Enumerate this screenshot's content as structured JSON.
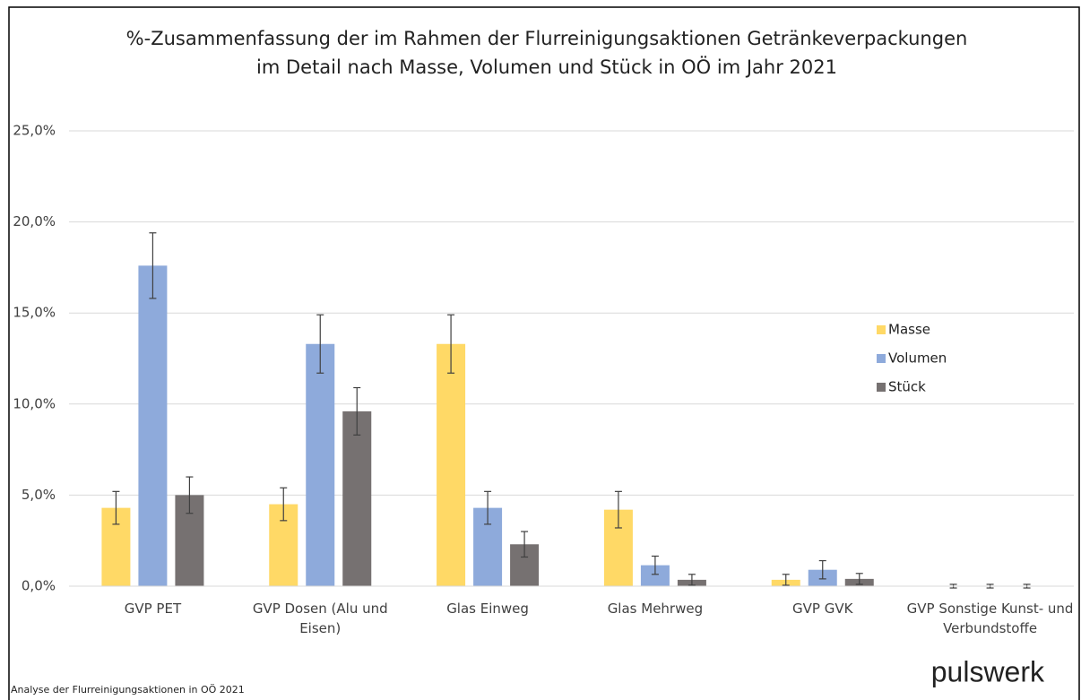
{
  "chart_data": {
    "type": "bar",
    "title": [
      "%-Zusammenfassung  der im Rahmen der Flurreinigungsaktionen Getränkeverpackungen",
      "im Detail nach Masse, Volumen und Stück in OÖ im Jahr 2021"
    ],
    "categories": [
      "GVP PET",
      "GVP Dosen (Alu und Eisen)",
      "Glas Einweg",
      "Glas Mehrweg",
      "GVP GVK",
      "GVP Sonstige Kunst- und Verbundstoffe"
    ],
    "series": [
      {
        "name": "Masse",
        "color": "#ffd966",
        "values": [
          4.3,
          4.5,
          13.3,
          4.2,
          0.35,
          0
        ],
        "errors": [
          0.9,
          0.9,
          1.6,
          1.0,
          0.3,
          0.1
        ]
      },
      {
        "name": "Volumen",
        "color": "#8eaadb",
        "values": [
          17.6,
          13.3,
          4.3,
          1.15,
          0.9,
          0
        ],
        "errors": [
          1.8,
          1.6,
          0.9,
          0.5,
          0.5,
          0.1
        ]
      },
      {
        "name": "Stück",
        "color": "#767171",
        "values": [
          5.0,
          9.6,
          2.3,
          0.35,
          0.4,
          0
        ],
        "errors": [
          1.0,
          1.3,
          0.7,
          0.3,
          0.3,
          0.1
        ]
      }
    ],
    "ylim": [
      0,
      25
    ],
    "yticks": [
      {
        "value": 0,
        "label": "0,0%"
      },
      {
        "value": 5,
        "label": "5,0%"
      },
      {
        "value": 10,
        "label": "10,0%"
      },
      {
        "value": 15,
        "label": "15,0%"
      },
      {
        "value": 20,
        "label": "20,0%"
      },
      {
        "value": 25,
        "label": "25,0%"
      }
    ],
    "grid": true,
    "legend": "right"
  },
  "footer": "Analyse der Flurreinigungsaktionen in OÖ 2021",
  "logo": "pulswerk"
}
